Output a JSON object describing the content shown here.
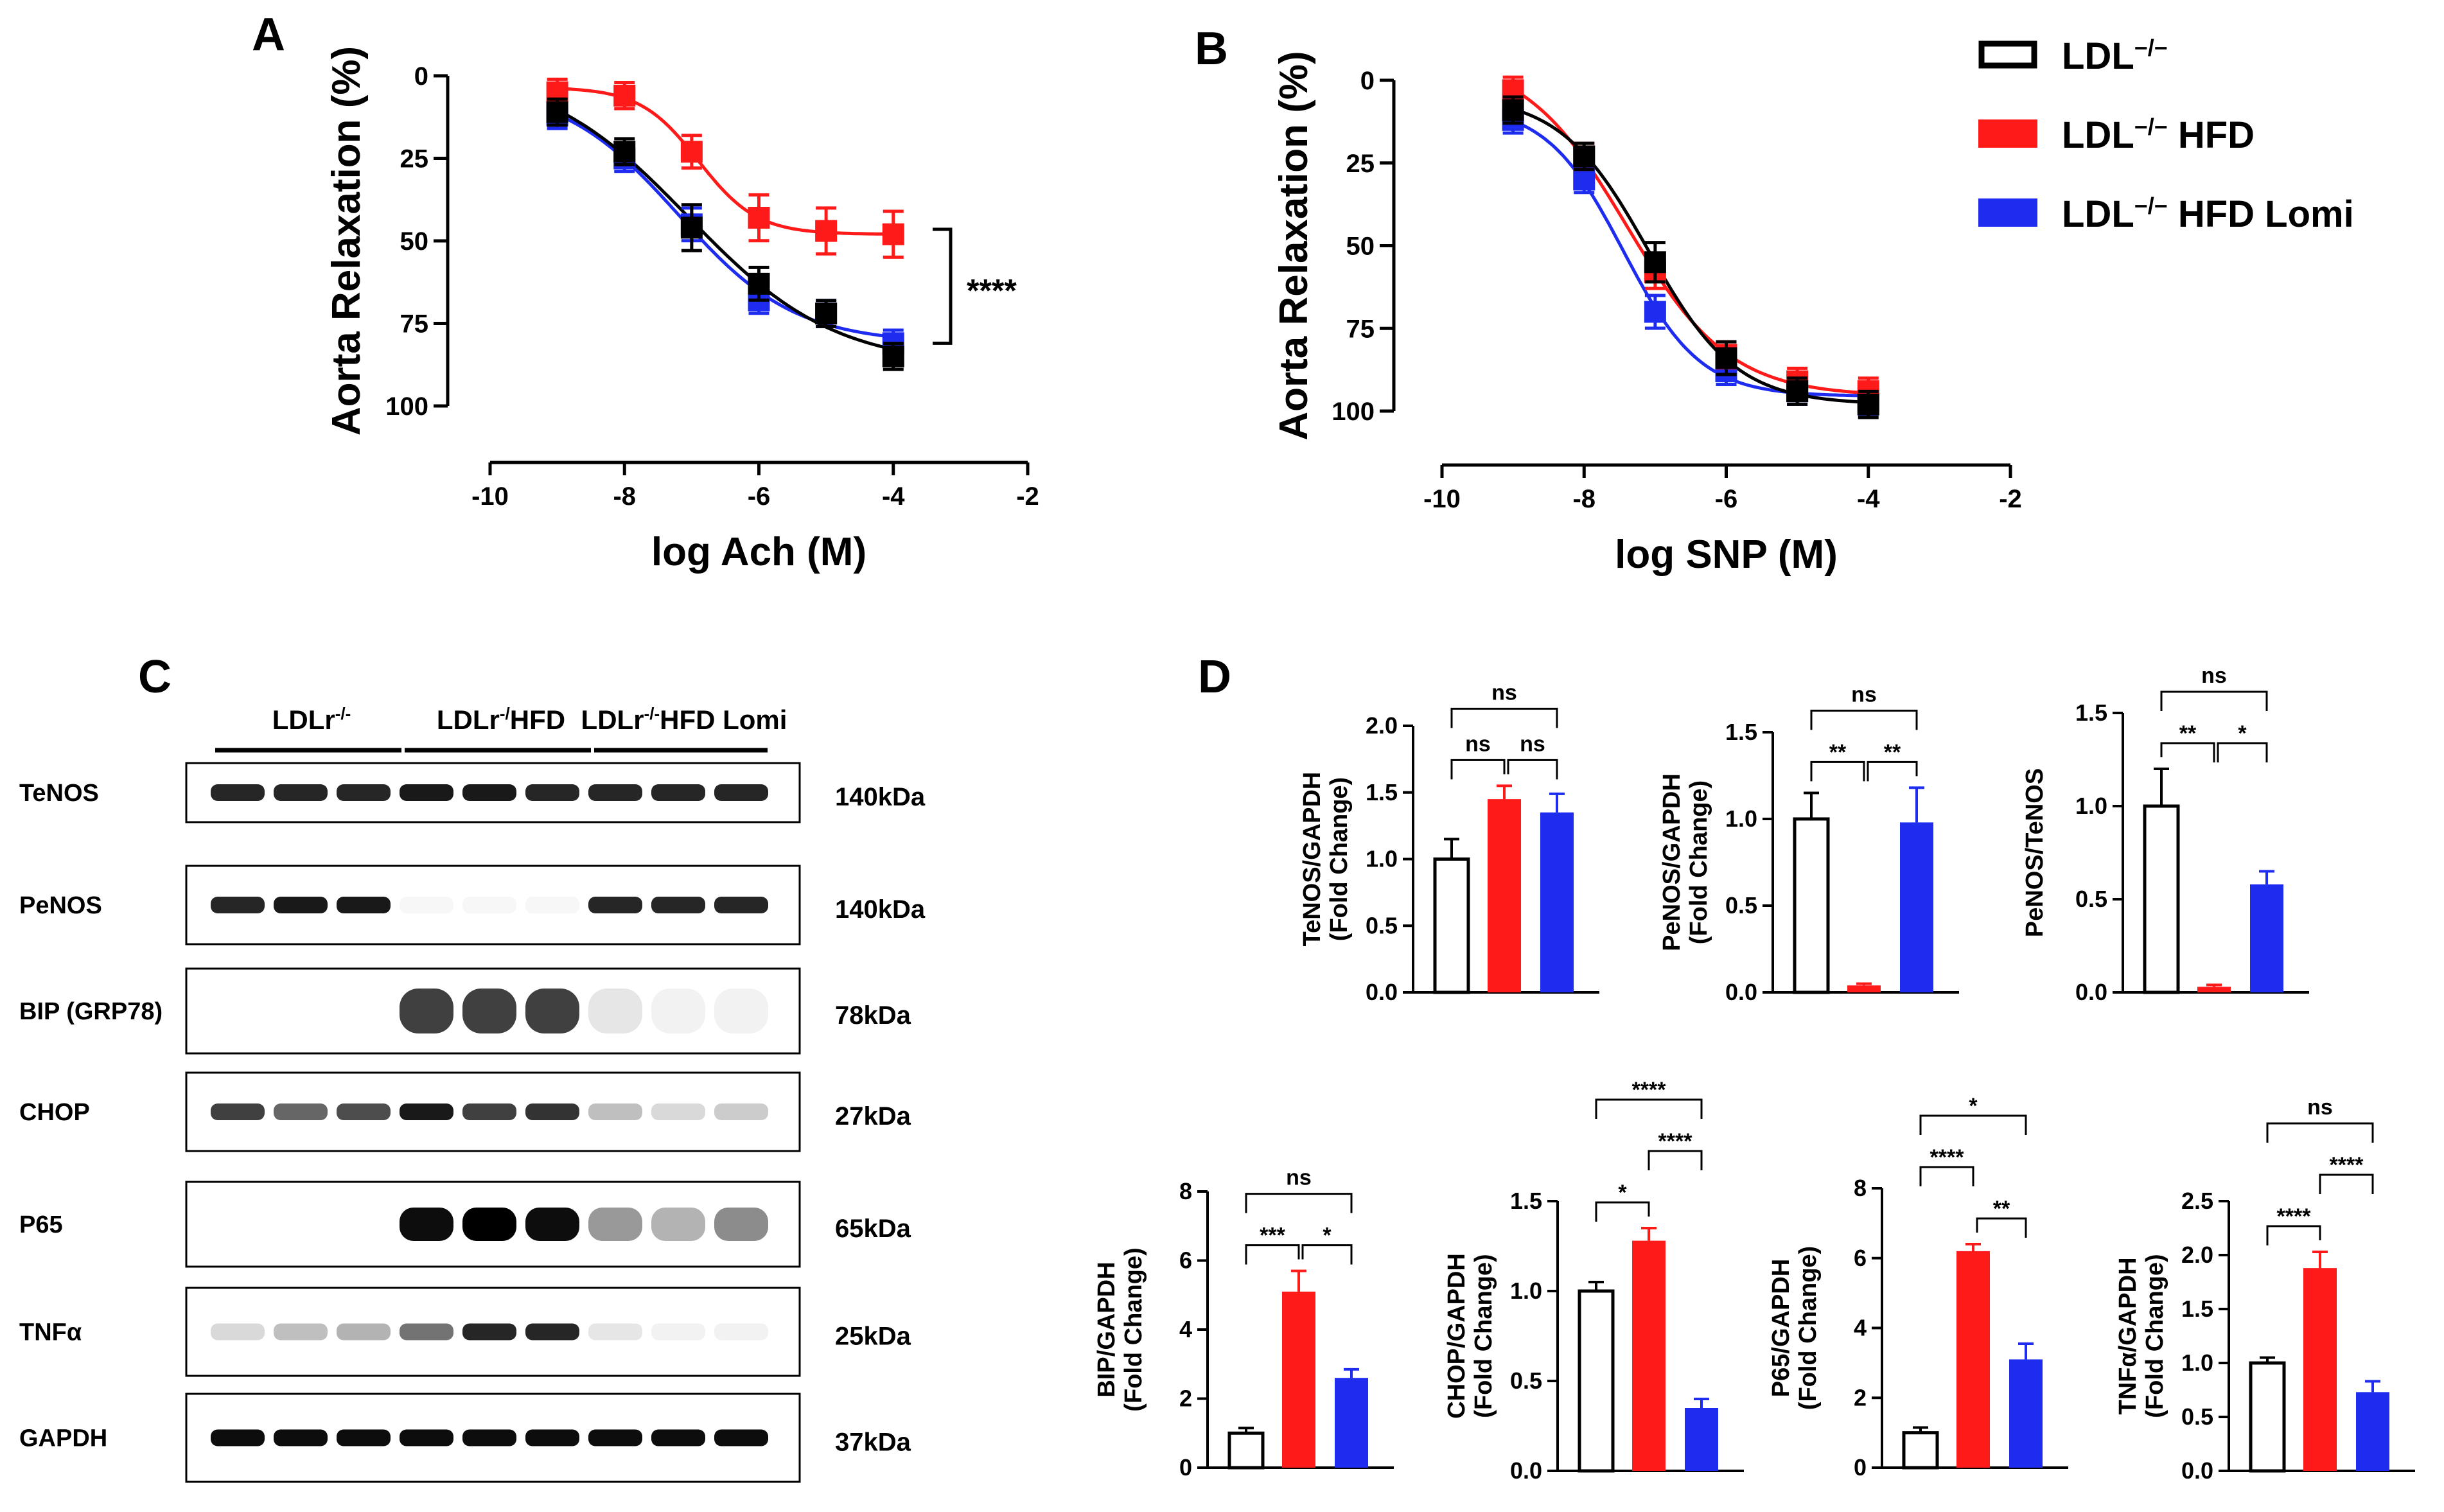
{
  "colors": {
    "ldl": "#000000",
    "hfd": "#ff1a1a",
    "lomi": "#1e2cf0"
  },
  "panel_labels": {
    "a": "A",
    "b": "B",
    "c": "C",
    "d": "D"
  },
  "legend": [
    {
      "label": "LDL",
      "sup": "−/−",
      "suffix": "",
      "color": "#000000",
      "filled": false
    },
    {
      "label": "LDL",
      "sup": "−/−",
      "suffix": " HFD",
      "color": "#ff1a1a",
      "filled": true
    },
    {
      "label": "LDL",
      "sup": "−/−",
      "suffix": " HFD Lomi",
      "color": "#1e2cf0",
      "filled": true
    }
  ],
  "chart_data": [
    {
      "id": "A",
      "type": "line",
      "title": "",
      "xlabel": "log Ach (M)",
      "ylabel": "Aorta Relaxation (%)",
      "xlim": [
        -10,
        -2
      ],
      "ylim": [
        0,
        100
      ],
      "y_inverted": true,
      "xticks": [
        -10,
        -8,
        -6,
        -4,
        -2
      ],
      "yticks": [
        0,
        25,
        50,
        75,
        100
      ],
      "x": [
        -9,
        -8,
        -7,
        -6,
        -5,
        -4
      ],
      "series": [
        {
          "name": "LDL−/−",
          "color": "#000000",
          "values": [
            11,
            23,
            46,
            63,
            72,
            85
          ],
          "errors": [
            2,
            2,
            5,
            3,
            2,
            2
          ]
        },
        {
          "name": "LDL−/− HFD",
          "color": "#ff1a1a",
          "values": [
            5,
            6,
            23,
            43,
            47,
            48
          ],
          "errors": [
            2,
            2,
            3,
            5,
            5,
            5
          ]
        },
        {
          "name": "LDL−/− HFD Lomi",
          "color": "#1e2cf0",
          "values": [
            12,
            25,
            45,
            68,
            72,
            81
          ],
          "errors": [
            2,
            2,
            3,
            2,
            2,
            2
          ]
        }
      ],
      "annotation": "****"
    },
    {
      "id": "B",
      "type": "line",
      "title": "",
      "xlabel": "log SNP (M)",
      "ylabel": "Aorta Relaxation (%)",
      "xlim": [
        -10,
        -2
      ],
      "ylim": [
        0,
        100
      ],
      "y_inverted": true,
      "xticks": [
        -10,
        -8,
        -6,
        -4,
        -2
      ],
      "yticks": [
        0,
        25,
        50,
        75,
        100
      ],
      "x": [
        -9,
        -8,
        -7,
        -6,
        -5,
        -4
      ],
      "series": [
        {
          "name": "LDL−/−",
          "color": "#000000",
          "values": [
            9,
            23,
            55,
            84,
            94,
            98
          ],
          "errors": [
            2,
            2,
            4,
            3,
            2,
            2
          ]
        },
        {
          "name": "LDL−/− HFD",
          "color": "#ff1a1a",
          "values": [
            3,
            23,
            58,
            83,
            91,
            94
          ],
          "errors": [
            2,
            2,
            3,
            2,
            2,
            2
          ]
        },
        {
          "name": "LDL−/− HFD Lomi",
          "color": "#1e2cf0",
          "values": [
            12,
            30,
            70,
            88,
            94,
            97
          ],
          "errors": [
            2,
            2,
            3,
            2,
            2,
            2
          ]
        }
      ]
    },
    {
      "id": "D-TeNOS",
      "type": "bar",
      "ylabel": [
        "TeNOS/GAPDH",
        "(Fold Change)"
      ],
      "categories": [
        "LDL−/−",
        "LDL−/− HFD",
        "LDL−/− HFD Lomi"
      ],
      "values": [
        1.0,
        1.45,
        1.35
      ],
      "errors": [
        0.15,
        0.1,
        0.14
      ],
      "ylim": [
        0,
        2.0
      ],
      "yticks": [
        "0.0",
        "0.5",
        "1.0",
        "1.5",
        "2.0"
      ],
      "brackets": [
        {
          "from": 0,
          "to": 1,
          "label": "ns",
          "level": 0
        },
        {
          "from": 1,
          "to": 2,
          "label": "ns",
          "level": 0
        },
        {
          "from": 0,
          "to": 2,
          "label": "ns",
          "level": 1
        }
      ]
    },
    {
      "id": "D-PeNOS",
      "type": "bar",
      "ylabel": [
        "PeNOS/GAPDH",
        "(Fold Change)"
      ],
      "categories": [
        "LDL−/−",
        "LDL−/− HFD",
        "LDL−/− HFD Lomi"
      ],
      "values": [
        1.0,
        0.04,
        0.98
      ],
      "errors": [
        0.15,
        0.01,
        0.2
      ],
      "ylim": [
        0,
        1.5
      ],
      "yticks": [
        "0.0",
        "0.5",
        "1.0",
        "1.5"
      ],
      "brackets": [
        {
          "from": 0,
          "to": 1,
          "label": "**",
          "level": 0
        },
        {
          "from": 1,
          "to": 2,
          "label": "**",
          "level": 0
        },
        {
          "from": 0,
          "to": 2,
          "label": "ns",
          "level": 1
        }
      ]
    },
    {
      "id": "D-PeNOS-TeNOS",
      "type": "bar",
      "ylabel": [
        "PeNOS/TeNOS"
      ],
      "categories": [
        "LDL−/−",
        "LDL−/− HFD",
        "LDL−/− HFD Lomi"
      ],
      "values": [
        1.0,
        0.03,
        0.58
      ],
      "errors": [
        0.2,
        0.01,
        0.07
      ],
      "ylim": [
        0,
        1.5
      ],
      "yticks": [
        "0.0",
        "0.5",
        "1.0",
        "1.5"
      ],
      "brackets": [
        {
          "from": 0,
          "to": 1,
          "label": "**",
          "level": 0
        },
        {
          "from": 1,
          "to": 2,
          "label": "*",
          "level": 0
        },
        {
          "from": 0,
          "to": 2,
          "label": "ns",
          "level": 1
        }
      ]
    },
    {
      "id": "D-BIP",
      "type": "bar",
      "ylabel": [
        "BIP/GAPDH",
        "(Fold Change)"
      ],
      "categories": [
        "LDL−/−",
        "LDL−/− HFD",
        "LDL−/− HFD Lomi"
      ],
      "values": [
        1.0,
        5.1,
        2.6
      ],
      "errors": [
        0.15,
        0.6,
        0.25
      ],
      "ylim": [
        0,
        8
      ],
      "yticks": [
        "0",
        "2",
        "4",
        "6",
        "8"
      ],
      "brackets": [
        {
          "from": 0,
          "to": 1,
          "label": "***",
          "level": 0
        },
        {
          "from": 1,
          "to": 2,
          "label": "*",
          "level": 0
        },
        {
          "from": 0,
          "to": 2,
          "label": "ns",
          "level": 1
        }
      ]
    },
    {
      "id": "D-CHOP",
      "type": "bar",
      "ylabel": [
        "CHOP/GAPDH",
        "(Fold Change)"
      ],
      "categories": [
        "LDL−/−",
        "LDL−/− HFD",
        "LDL−/− HFD Lomi"
      ],
      "values": [
        1.0,
        1.28,
        0.35
      ],
      "errors": [
        0.05,
        0.07,
        0.05
      ],
      "ylim": [
        0,
        1.5
      ],
      "yticks": [
        "0.0",
        "0.5",
        "1.0",
        "1.5"
      ],
      "brackets": [
        {
          "from": 0,
          "to": 1,
          "label": "*",
          "level": 0
        },
        {
          "from": 1,
          "to": 2,
          "label": "****",
          "level": 1
        },
        {
          "from": 0,
          "to": 2,
          "label": "****",
          "level": 2
        }
      ]
    },
    {
      "id": "D-P65",
      "type": "bar",
      "ylabel": [
        "P65/GAPDH",
        "(Fold Change)"
      ],
      "categories": [
        "LDL−/−",
        "LDL−/− HFD",
        "LDL−/− HFD Lomi"
      ],
      "values": [
        1.0,
        6.2,
        3.1
      ],
      "errors": [
        0.15,
        0.2,
        0.45
      ],
      "ylim": [
        0,
        8
      ],
      "yticks": [
        "0",
        "2",
        "4",
        "6",
        "8"
      ],
      "brackets": [
        {
          "from": 1,
          "to": 2,
          "label": "**",
          "level": 0
        },
        {
          "from": 0,
          "to": 1,
          "label": "****",
          "level": 1
        },
        {
          "from": 0,
          "to": 2,
          "label": "*",
          "level": 2
        }
      ]
    },
    {
      "id": "D-TNFa",
      "type": "bar",
      "ylabel": [
        "TNFα/GAPDH",
        "(Fold Change)"
      ],
      "categories": [
        "LDL−/−",
        "LDL−/− HFD",
        "LDL−/− HFD Lomi"
      ],
      "values": [
        1.0,
        1.88,
        0.73
      ],
      "errors": [
        0.05,
        0.15,
        0.1
      ],
      "ylim": [
        0,
        2.5
      ],
      "yticks": [
        "0.0",
        "0.5",
        "1.0",
        "1.5",
        "2.0",
        "2.5"
      ],
      "brackets": [
        {
          "from": 0,
          "to": 1,
          "label": "****",
          "level": 0
        },
        {
          "from": 1,
          "to": 2,
          "label": "****",
          "level": 1
        },
        {
          "from": 0,
          "to": 2,
          "label": "ns",
          "level": 2
        }
      ]
    }
  ],
  "blots": {
    "groups": [
      {
        "label": "LDLr",
        "sup": "-/-",
        "suffix": ""
      },
      {
        "label": "LDLr",
        "sup": "-/",
        "suffix": "HFD"
      },
      {
        "label": "LDLr",
        "sup": "-/-",
        "suffix": "HFD Lomi"
      }
    ],
    "rows": [
      {
        "name": "TeNOS",
        "kda": "140kDa",
        "intensities": [
          0.85,
          0.85,
          0.85,
          0.9,
          0.9,
          0.85,
          0.85,
          0.85,
          0.85
        ]
      },
      {
        "name": "PeNOS",
        "kda": "140kDa",
        "intensities": [
          0.85,
          0.9,
          0.9,
          0.03,
          0.03,
          0.03,
          0.85,
          0.85,
          0.85
        ]
      },
      {
        "name": "BIP (GRP78)",
        "kda": "78kDa",
        "intensities": [
          0.0,
          0.0,
          0.0,
          0.75,
          0.75,
          0.75,
          0.1,
          0.05,
          0.05
        ]
      },
      {
        "name": "CHOP",
        "kda": "27kDa",
        "intensities": [
          0.75,
          0.6,
          0.7,
          0.9,
          0.75,
          0.8,
          0.25,
          0.15,
          0.2
        ]
      },
      {
        "name": "P65",
        "kda": "65kDa",
        "intensities": [
          0.0,
          0.0,
          0.0,
          0.95,
          1.0,
          0.95,
          0.4,
          0.3,
          0.45
        ]
      },
      {
        "name": "TNFα",
        "kda": "25kDa",
        "intensities": [
          0.15,
          0.25,
          0.3,
          0.55,
          0.85,
          0.85,
          0.1,
          0.05,
          0.05
        ]
      },
      {
        "name": "GAPDH",
        "kda": "37kDa",
        "intensities": [
          0.95,
          0.95,
          0.95,
          0.95,
          0.95,
          0.95,
          0.95,
          0.95,
          0.95
        ]
      }
    ]
  }
}
